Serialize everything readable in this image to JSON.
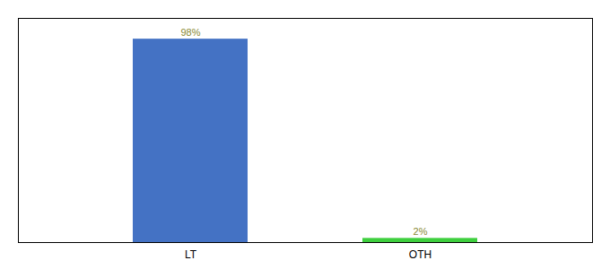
{
  "chart_data": {
    "type": "bar",
    "categories": [
      "LT",
      "OTH"
    ],
    "values": [
      98,
      2
    ],
    "value_labels": [
      "98%",
      "2%"
    ],
    "colors": [
      "#4472C4",
      "#3ECF3E"
    ],
    "ylim": [
      0,
      108
    ],
    "data_labels": true,
    "tick_labels": "x",
    "grid": false
  }
}
